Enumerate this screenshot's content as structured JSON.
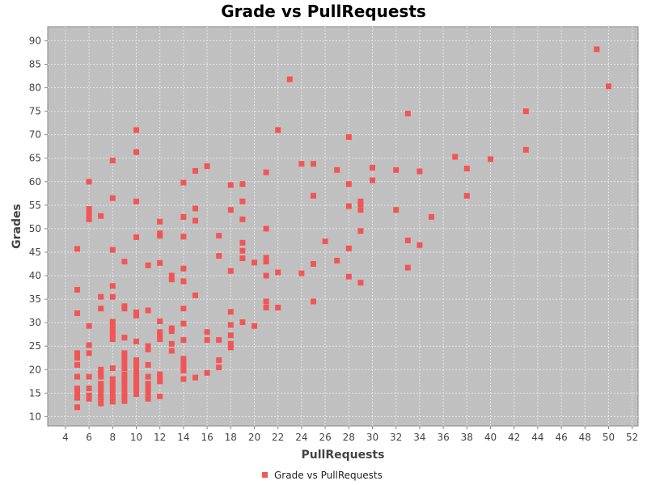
{
  "chart_data": {
    "type": "scatter",
    "title": "Grade vs PullRequests",
    "xlabel": "PullRequests",
    "ylabel": "Grades",
    "xlim": [
      2.5,
      52.5
    ],
    "ylim": [
      8,
      93
    ],
    "xticks": [
      4,
      6,
      8,
      10,
      12,
      14,
      16,
      18,
      20,
      22,
      24,
      26,
      28,
      30,
      32,
      34,
      36,
      38,
      40,
      42,
      44,
      46,
      48,
      50,
      52
    ],
    "yticks": [
      10,
      15,
      20,
      25,
      30,
      35,
      40,
      45,
      50,
      55,
      60,
      65,
      70,
      75,
      80,
      85,
      90
    ],
    "grid": true,
    "legend_position": "bottom-center",
    "colors": {
      "series": "#f25555",
      "plot_bg": "#c0c0c0",
      "grid": "#e6e6e6"
    },
    "series": [
      {
        "name": "Grade vs PullRequests",
        "points": [
          [
            5,
            12
          ],
          [
            5,
            14
          ],
          [
            5,
            15
          ],
          [
            5,
            16
          ],
          [
            5,
            18.5
          ],
          [
            5,
            21
          ],
          [
            5,
            22.5
          ],
          [
            5,
            23.5
          ],
          [
            5,
            32
          ],
          [
            5,
            37
          ],
          [
            5,
            45.7
          ],
          [
            6,
            13.8
          ],
          [
            6,
            14.5
          ],
          [
            6,
            16
          ],
          [
            6,
            18.5
          ],
          [
            6,
            23.5
          ],
          [
            6,
            25.2
          ],
          [
            6,
            29.3
          ],
          [
            6,
            52
          ],
          [
            6,
            53
          ],
          [
            6,
            54.2
          ],
          [
            6,
            60
          ],
          [
            7,
            12.8
          ],
          [
            7,
            14
          ],
          [
            7,
            15
          ],
          [
            7,
            16
          ],
          [
            7,
            17
          ],
          [
            7,
            18.5
          ],
          [
            7,
            19.3
          ],
          [
            7,
            20
          ],
          [
            7,
            33
          ],
          [
            7,
            35.5
          ],
          [
            7,
            52.7
          ],
          [
            8,
            13.2
          ],
          [
            8,
            14
          ],
          [
            8,
            15
          ],
          [
            8,
            16
          ],
          [
            8,
            17
          ],
          [
            8,
            18
          ],
          [
            8,
            20.3
          ],
          [
            8,
            26.5
          ],
          [
            8,
            27.5
          ],
          [
            8,
            28.5
          ],
          [
            8,
            29.5
          ],
          [
            8,
            30.2
          ],
          [
            8,
            35.5
          ],
          [
            8,
            37.8
          ],
          [
            8,
            45.5
          ],
          [
            8,
            56.5
          ],
          [
            8,
            64.5
          ],
          [
            9,
            13.3
          ],
          [
            9,
            14.2
          ],
          [
            9,
            14.9
          ],
          [
            9,
            16
          ],
          [
            9,
            17
          ],
          [
            9,
            18
          ],
          [
            9,
            19
          ],
          [
            9,
            20.3
          ],
          [
            9,
            21.5
          ],
          [
            9,
            22.5
          ],
          [
            9,
            23.5
          ],
          [
            9,
            26.8
          ],
          [
            9,
            33
          ],
          [
            9,
            33.5
          ],
          [
            9,
            43
          ],
          [
            10,
            14.8
          ],
          [
            10,
            16
          ],
          [
            10,
            17
          ],
          [
            10,
            18
          ],
          [
            10,
            19
          ],
          [
            10,
            20
          ],
          [
            10,
            21
          ],
          [
            10,
            22
          ],
          [
            10,
            26
          ],
          [
            10,
            31.5
          ],
          [
            10,
            32.2
          ],
          [
            10,
            48.2
          ],
          [
            10,
            55.8
          ],
          [
            10,
            66.3
          ],
          [
            10,
            71
          ],
          [
            11,
            13.8
          ],
          [
            11,
            15
          ],
          [
            11,
            16
          ],
          [
            11,
            17
          ],
          [
            11,
            18.5
          ],
          [
            11,
            21
          ],
          [
            11,
            24.3
          ],
          [
            11,
            25
          ],
          [
            11,
            32.6
          ],
          [
            11,
            42.2
          ],
          [
            12,
            14.3
          ],
          [
            12,
            17.5
          ],
          [
            12,
            18.5
          ],
          [
            12,
            19
          ],
          [
            12,
            26.5
          ],
          [
            12,
            27.5
          ],
          [
            12,
            28
          ],
          [
            12,
            30.3
          ],
          [
            12,
            42.7
          ],
          [
            12,
            48.5
          ],
          [
            12,
            49
          ],
          [
            12,
            51.5
          ],
          [
            13,
            24
          ],
          [
            13,
            25.5
          ],
          [
            13,
            28.2
          ],
          [
            13,
            28.8
          ],
          [
            13,
            39.2
          ],
          [
            13,
            40
          ],
          [
            14,
            18
          ],
          [
            14,
            19.8
          ],
          [
            14,
            20.5
          ],
          [
            14,
            21.5
          ],
          [
            14,
            22.3
          ],
          [
            14,
            26.3
          ],
          [
            14,
            29.8
          ],
          [
            14,
            33
          ],
          [
            14,
            38.8
          ],
          [
            14,
            41.5
          ],
          [
            14,
            48.3
          ],
          [
            14,
            52.5
          ],
          [
            14,
            59.8
          ],
          [
            15,
            18.3
          ],
          [
            15,
            35.8
          ],
          [
            15,
            51.7
          ],
          [
            15,
            54.3
          ],
          [
            15,
            62.3
          ],
          [
            16,
            19.3
          ],
          [
            16,
            26.3
          ],
          [
            16,
            28
          ],
          [
            16,
            63.3
          ],
          [
            17,
            20.5
          ],
          [
            17,
            22
          ],
          [
            17,
            26.3
          ],
          [
            17,
            44.2
          ],
          [
            17,
            48.5
          ],
          [
            18,
            24.7
          ],
          [
            18,
            25.5
          ],
          [
            18,
            27.3
          ],
          [
            18,
            29.5
          ],
          [
            18,
            32.3
          ],
          [
            18,
            41
          ],
          [
            18,
            54
          ],
          [
            18,
            59.3
          ],
          [
            19,
            30.1
          ],
          [
            19,
            43.7
          ],
          [
            19,
            45.3
          ],
          [
            19,
            47
          ],
          [
            19,
            52
          ],
          [
            19,
            55.8
          ],
          [
            19,
            59.5
          ],
          [
            20,
            29.3
          ],
          [
            20,
            42.8
          ],
          [
            21,
            33.2
          ],
          [
            21,
            34.5
          ],
          [
            21,
            40
          ],
          [
            21,
            43
          ],
          [
            21,
            43.8
          ],
          [
            21,
            50
          ],
          [
            21,
            62
          ],
          [
            22,
            33.2
          ],
          [
            22,
            40.7
          ],
          [
            22,
            71
          ],
          [
            23,
            81.8
          ],
          [
            24,
            40.5
          ],
          [
            24,
            63.8
          ],
          [
            25,
            34.5
          ],
          [
            25,
            42.5
          ],
          [
            25,
            57
          ],
          [
            25,
            63.8
          ],
          [
            26,
            47.3
          ],
          [
            27,
            43.2
          ],
          [
            27,
            62.5
          ],
          [
            28,
            39.8
          ],
          [
            28,
            45.8
          ],
          [
            28,
            54.8
          ],
          [
            28,
            59.5
          ],
          [
            28,
            69.5
          ],
          [
            29,
            38.5
          ],
          [
            29,
            49.5
          ],
          [
            29,
            54
          ],
          [
            29,
            55.2
          ],
          [
            29,
            55.8
          ],
          [
            30,
            60.3
          ],
          [
            30,
            63
          ],
          [
            32,
            54
          ],
          [
            32,
            62.5
          ],
          [
            33,
            41.7
          ],
          [
            33,
            47.5
          ],
          [
            33,
            74.5
          ],
          [
            34,
            46.5
          ],
          [
            34,
            62.2
          ],
          [
            35,
            52.5
          ],
          [
            37,
            65.3
          ],
          [
            38,
            57
          ],
          [
            38,
            62.8
          ],
          [
            40,
            64.8
          ],
          [
            43,
            66.8
          ],
          [
            43,
            75
          ],
          [
            49,
            88.2
          ],
          [
            50,
            80.3
          ]
        ]
      }
    ]
  }
}
